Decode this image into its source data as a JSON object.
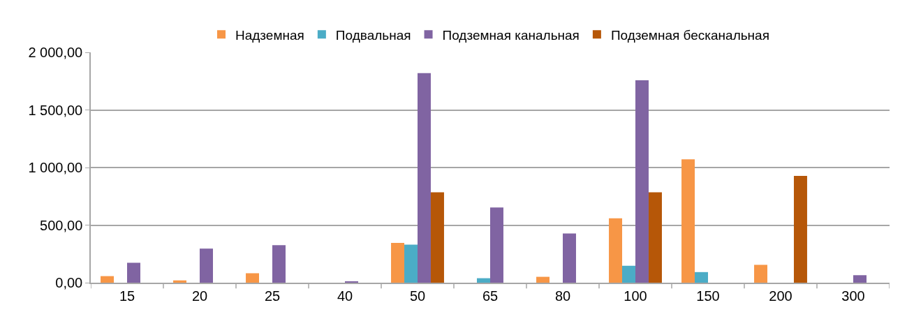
{
  "chart_data": {
    "type": "bar",
    "categories": [
      "15",
      "20",
      "25",
      "40",
      "50",
      "65",
      "80",
      "100",
      "150",
      "200",
      "300"
    ],
    "series": [
      {
        "name": "Надземная",
        "color": "#f79646",
        "values": [
          57,
          20,
          82,
          null,
          345,
          null,
          51,
          559,
          1071,
          155,
          null
        ]
      },
      {
        "name": "Подвальная",
        "color": "#4bacc6",
        "values": [
          null,
          null,
          null,
          null,
          330,
          39,
          null,
          147,
          92,
          null,
          null
        ]
      },
      {
        "name": "Подземная канальная",
        "color": "#8064a2",
        "values": [
          173,
          296,
          326,
          8,
          1819,
          653,
          428,
          1758,
          null,
          null,
          65
        ]
      },
      {
        "name": "Подземная бесканальная",
        "color": "#b65708",
        "values": [
          null,
          null,
          null,
          null,
          785,
          null,
          null,
          785,
          null,
          928,
          null
        ]
      }
    ],
    "ylim": [
      0,
      2000
    ],
    "yticks": [
      {
        "value": 0,
        "label": "0,00"
      },
      {
        "value": 500,
        "label": "500,00"
      },
      {
        "value": 1000,
        "label": "1 000,00"
      },
      {
        "value": 1500,
        "label": "1 500,00"
      },
      {
        "value": 2000,
        "label": "2 000,00"
      }
    ],
    "grid": "y",
    "legend": "top"
  }
}
